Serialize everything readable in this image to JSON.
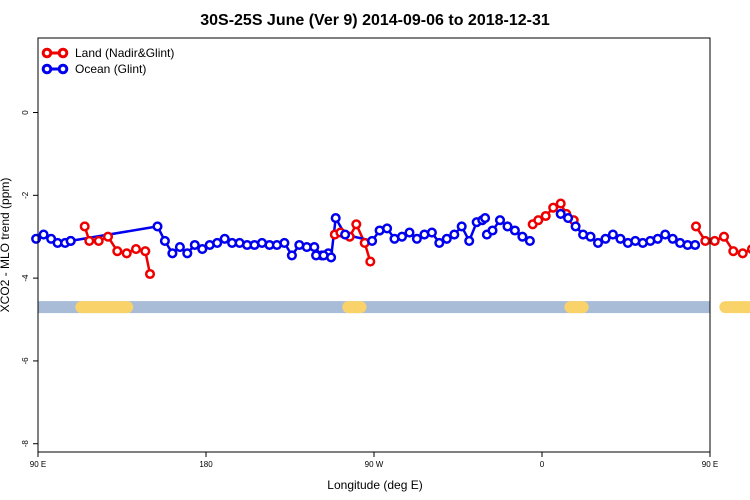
{
  "chart_data": {
    "type": "line",
    "title": "30S-25S June (Ver 9)   2014-09-06 to 2018-12-31",
    "xlabel": "Longitude (deg E)",
    "ylabel": "XCO2 - MLO trend (ppm)",
    "xlim": [
      90,
      450
    ],
    "ylim": [
      -8.2,
      1.8
    ],
    "x_ticks": [
      {
        "value": 90,
        "label": "90 E"
      },
      {
        "value": 180,
        "label": "180"
      },
      {
        "value": 270,
        "label": "90 W"
      },
      {
        "value": 360,
        "label": "0"
      },
      {
        "value": 450,
        "label": "90 E"
      },
      {
        "value": 540,
        "label": "180"
      }
    ],
    "y_ticks": [
      {
        "value": 0,
        "label": "0"
      },
      {
        "value": -2,
        "label": "-2"
      },
      {
        "value": -4,
        "label": "-4"
      },
      {
        "value": -6,
        "label": "-6"
      },
      {
        "value": -8,
        "label": "-8"
      }
    ],
    "legend": {
      "position": "top-left"
    },
    "grid": false,
    "series": [
      {
        "name": "Land (Nadir&Glint)",
        "color": "#ee0000",
        "segments": [
          {
            "x": [
              115,
              117.5,
              122.5,
              127.5,
              132.5,
              137.5,
              142.5,
              147.5,
              150
            ],
            "y": [
              -2.75,
              -3.1,
              -3.1,
              -3.0,
              -3.35,
              -3.4,
              -3.3,
              -3.35,
              -3.9
            ]
          },
          {
            "x": [
              249,
              252,
              257,
              260.5,
              265,
              268
            ],
            "y": [
              -2.95,
              -2.9,
              -3.0,
              -2.7,
              -3.15,
              -3.6
            ]
          },
          {
            "x": [
              355,
              358,
              362,
              366,
              370,
              373,
              377
            ],
            "y": [
              -2.7,
              -2.6,
              -2.5,
              -2.3,
              -2.2,
              -2.45,
              -2.6
            ]
          },
          {
            "x": [
              442.5,
              447.5,
              452.5,
              457.5,
              462.5,
              467.5,
              472.5,
              477.5
            ],
            "y": [
              -2.75,
              -3.1,
              -3.1,
              -3.0,
              -3.35,
              -3.4,
              -3.3,
              -3.35
            ]
          },
          {
            "x": [
              477.5,
              479.5
            ],
            "y": [
              -3.35,
              -3.9
            ]
          }
        ]
      },
      {
        "name": "Ocean (Glint)",
        "color": "#0000ee",
        "segments": [
          {
            "x": [
              89,
              93,
              97,
              100.5,
              104.5,
              107.5
            ],
            "y": [
              -3.05,
              -2.95,
              -3.05,
              -3.15,
              -3.15,
              -3.1
            ]
          },
          {
            "x": [
              107.5,
              154,
              158,
              162,
              166,
              170,
              174,
              178,
              182,
              186,
              190,
              194,
              198,
              202,
              206,
              210,
              214,
              218,
              222,
              226,
              230,
              234,
              238,
              242,
              245.5
            ],
            "y": [
              -3.1,
              -2.75,
              -3.1,
              -3.4,
              -3.25,
              -3.4,
              -3.2,
              -3.3,
              -3.2,
              -3.15,
              -3.05,
              -3.15,
              -3.15,
              -3.2,
              -3.2,
              -3.15,
              -3.2,
              -3.2,
              -3.15,
              -3.45,
              -3.2,
              -3.25,
              -3.25,
              -3.45,
              -3.4
            ]
          },
          {
            "x": [
              239,
              243,
              247,
              249.5,
              254.5,
              269,
              273,
              277,
              281,
              285,
              289,
              293,
              297,
              301,
              305,
              309,
              313,
              317,
              321,
              325,
              328,
              329.5
            ],
            "y": [
              -3.45,
              -3.45,
              -3.5,
              -2.55,
              -2.95,
              -3.1,
              -2.85,
              -2.8,
              -3.05,
              -3.0,
              -2.9,
              -3.05,
              -2.95,
              -2.9,
              -3.15,
              -3.05,
              -2.95,
              -2.75,
              -3.1,
              -2.65,
              -2.6,
              -2.55
            ]
          },
          {
            "x": [
              330.5,
              333.5,
              337.5,
              341.5,
              345.5,
              349.5,
              353.5
            ],
            "y": [
              -2.95,
              -2.85,
              -2.6,
              -2.75,
              -2.85,
              -3.0,
              -3.1
            ]
          },
          {
            "x": [
              370,
              374,
              378,
              382,
              386,
              390,
              394,
              398,
              402,
              406,
              410,
              414,
              418,
              422,
              426,
              430,
              434,
              438,
              442
            ],
            "y": [
              -2.45,
              -2.55,
              -2.75,
              -2.95,
              -3.0,
              -3.15,
              -3.05,
              -2.95,
              -3.05,
              -3.15,
              -3.1,
              -3.15,
              -3.1,
              -3.05,
              -2.95,
              -3.05,
              -3.15,
              -3.2,
              -3.2
            ]
          },
          {
            "x": [
              478,
              481.5,
              485,
              489,
              493,
              497,
              501
            ],
            "y": [
              -2.75,
              -3.1,
              -3.4,
              -3.3,
              -3.4,
              -3.2,
              -3.15
            ]
          }
        ]
      }
    ],
    "band": {
      "y": -4.7,
      "color": "#a8bcd8",
      "land_color": "#f9d36a",
      "land_spans": [
        [
          110,
          141
        ],
        [
          253,
          266
        ],
        [
          372,
          385
        ],
        [
          455,
          486
        ]
      ]
    }
  }
}
